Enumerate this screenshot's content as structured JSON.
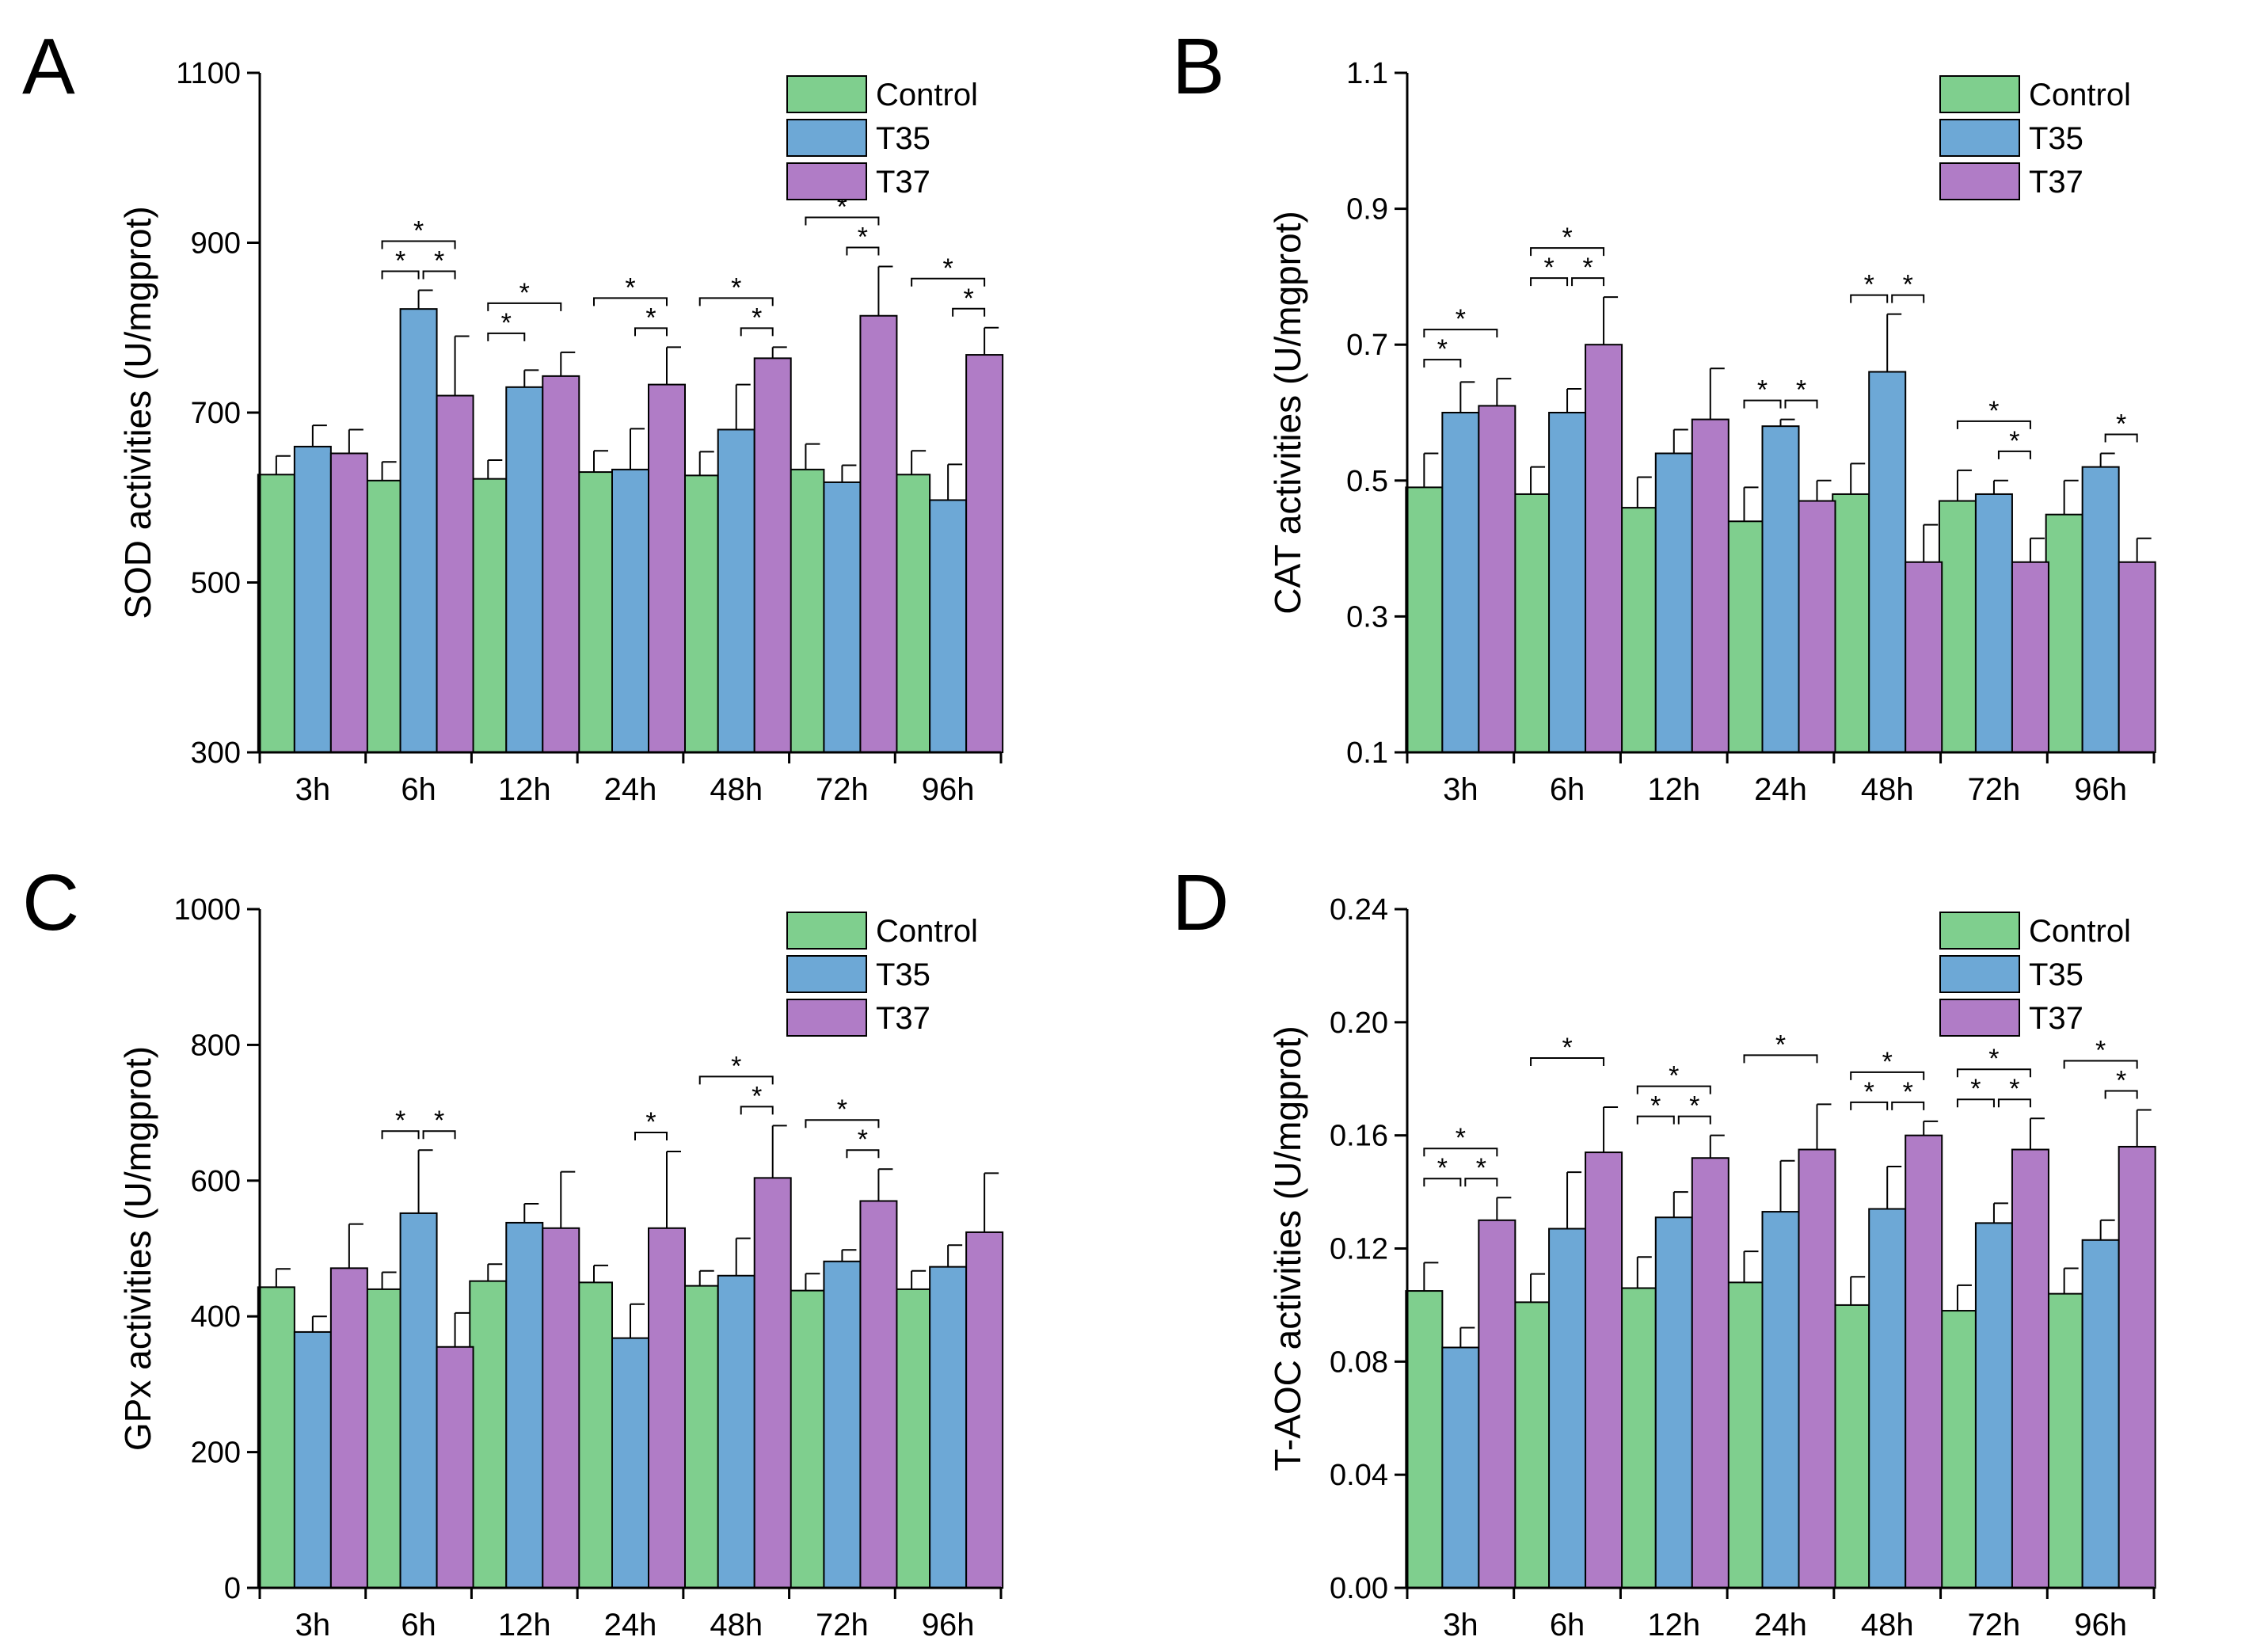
{
  "legend": {
    "items": [
      {
        "name": "Control",
        "color": "#7fcf8e"
      },
      {
        "name": "T35",
        "color": "#6da8d6"
      },
      {
        "name": "T37",
        "color": "#b07cc6"
      }
    ]
  },
  "chart_data": [
    {
      "panel": "A",
      "type": "bar",
      "title": "",
      "xlabel": "",
      "ylabel": "SOD activities (U/mgprot)",
      "ylim": [
        300,
        1100
      ],
      "yticks": [
        "300",
        "500",
        "700",
        "900",
        "1100"
      ],
      "categories": [
        "3h",
        "6h",
        "12h",
        "24h",
        "48h",
        "72h",
        "96h"
      ],
      "series": [
        {
          "name": "Control",
          "values": [
            627,
            620,
            622,
            630,
            626,
            633,
            627
          ],
          "errors": [
            22,
            22,
            22,
            25,
            28,
            30,
            28
          ]
        },
        {
          "name": "T35",
          "values": [
            660,
            822,
            730,
            633,
            680,
            618,
            597
          ],
          "errors": [
            25,
            22,
            20,
            48,
            53,
            20,
            42
          ]
        },
        {
          "name": "T37",
          "values": [
            652,
            720,
            743,
            733,
            764,
            814,
            768
          ],
          "errors": [
            28,
            70,
            28,
            44,
            13,
            58,
            32
          ]
        }
      ],
      "significance": [
        {
          "category": "6h",
          "pairs": [
            [
              "Control",
              "T35"
            ],
            [
              "T35",
              "T37"
            ],
            [
              "Control",
              "T37"
            ]
          ],
          "label": "*"
        },
        {
          "category": "12h",
          "pairs": [
            [
              "Control",
              "T35"
            ],
            [
              "Control",
              "T37"
            ]
          ],
          "label": "*"
        },
        {
          "category": "24h",
          "pairs": [
            [
              "T35",
              "T37"
            ],
            [
              "Control",
              "T37"
            ]
          ],
          "label": "*"
        },
        {
          "category": "48h",
          "pairs": [
            [
              "T35",
              "T37"
            ],
            [
              "Control",
              "T37"
            ]
          ],
          "label": "*"
        },
        {
          "category": "72h",
          "pairs": [
            [
              "T35",
              "T37"
            ],
            [
              "Control",
              "T37"
            ]
          ],
          "label": "*"
        },
        {
          "category": "96h",
          "pairs": [
            [
              "T35",
              "T37"
            ],
            [
              "Control",
              "T37"
            ]
          ],
          "label": "*"
        }
      ]
    },
    {
      "panel": "B",
      "type": "bar",
      "title": "",
      "xlabel": "",
      "ylabel": "CAT activities (U/mgprot)",
      "ylim": [
        0.1,
        1.1
      ],
      "yticks": [
        "0.1",
        "0.3",
        "0.5",
        "0.7",
        "0.9",
        "1.1"
      ],
      "categories": [
        "3h",
        "6h",
        "12h",
        "24h",
        "48h",
        "72h",
        "96h"
      ],
      "series": [
        {
          "name": "Control",
          "values": [
            0.49,
            0.48,
            0.46,
            0.44,
            0.48,
            0.47,
            0.45
          ],
          "errors": [
            0.05,
            0.04,
            0.045,
            0.05,
            0.045,
            0.045,
            0.05
          ]
        },
        {
          "name": "T35",
          "values": [
            0.6,
            0.6,
            0.54,
            0.58,
            0.66,
            0.48,
            0.52
          ],
          "errors": [
            0.045,
            0.035,
            0.035,
            0.01,
            0.085,
            0.02,
            0.02
          ]
        },
        {
          "name": "T37",
          "values": [
            0.61,
            0.7,
            0.59,
            0.47,
            0.38,
            0.38,
            0.38
          ],
          "errors": [
            0.04,
            0.07,
            0.075,
            0.03,
            0.055,
            0.035,
            0.035
          ]
        }
      ],
      "significance": [
        {
          "category": "3h",
          "pairs": [
            [
              "Control",
              "T35"
            ],
            [
              "Control",
              "T37"
            ]
          ],
          "label": "*"
        },
        {
          "category": "6h",
          "pairs": [
            [
              "Control",
              "T35"
            ],
            [
              "T35",
              "T37"
            ],
            [
              "Control",
              "T37"
            ]
          ],
          "label": "*"
        },
        {
          "category": "24h",
          "pairs": [
            [
              "Control",
              "T35"
            ],
            [
              "T35",
              "T37"
            ]
          ],
          "label": "*"
        },
        {
          "category": "48h",
          "pairs": [
            [
              "Control",
              "T35"
            ],
            [
              "T35",
              "T37"
            ]
          ],
          "label": "*"
        },
        {
          "category": "72h",
          "pairs": [
            [
              "T35",
              "T37"
            ],
            [
              "Control",
              "T37"
            ]
          ],
          "label": "*"
        },
        {
          "category": "96h",
          "pairs": [
            [
              "T35",
              "T37"
            ]
          ],
          "label": "*"
        }
      ]
    },
    {
      "panel": "C",
      "type": "bar",
      "title": "",
      "xlabel": "",
      "ylabel": "GPx activities (U/mgprot)",
      "ylim": [
        0,
        1000
      ],
      "yticks": [
        "0",
        "200",
        "400",
        "600",
        "800",
        "1000"
      ],
      "categories": [
        "3h",
        "6h",
        "12h",
        "24h",
        "48h",
        "72h",
        "96h"
      ],
      "series": [
        {
          "name": "Control",
          "values": [
            443,
            440,
            452,
            450,
            445,
            438,
            440
          ],
          "errors": [
            27,
            25,
            25,
            25,
            22,
            25,
            27
          ]
        },
        {
          "name": "T35",
          "values": [
            377,
            552,
            538,
            368,
            460,
            481,
            473
          ],
          "errors": [
            23,
            93,
            28,
            50,
            55,
            17,
            32
          ]
        },
        {
          "name": "T37",
          "values": [
            471,
            355,
            530,
            530,
            604,
            570,
            524
          ],
          "errors": [
            65,
            50,
            83,
            113,
            77,
            47,
            87
          ]
        }
      ],
      "significance": [
        {
          "category": "6h",
          "pairs": [
            [
              "Control",
              "T35"
            ],
            [
              "T35",
              "T37"
            ]
          ],
          "label": "*"
        },
        {
          "category": "24h",
          "pairs": [
            [
              "T35",
              "T37"
            ]
          ],
          "label": "*"
        },
        {
          "category": "48h",
          "pairs": [
            [
              "T35",
              "T37"
            ],
            [
              "Control",
              "T37"
            ]
          ],
          "label": "*"
        },
        {
          "category": "72h",
          "pairs": [
            [
              "T35",
              "T37"
            ],
            [
              "Control",
              "T37"
            ]
          ],
          "label": "*"
        }
      ]
    },
    {
      "panel": "D",
      "type": "bar",
      "title": "",
      "xlabel": "",
      "ylabel": "T-AOC activities (U/mgprot)",
      "ylim": [
        0.0,
        0.24
      ],
      "yticks": [
        "0.00",
        "0.04",
        "0.08",
        "0.12",
        "0.16",
        "0.20",
        "0.24"
      ],
      "categories": [
        "3h",
        "6h",
        "12h",
        "24h",
        "48h",
        "72h",
        "96h"
      ],
      "series": [
        {
          "name": "Control",
          "values": [
            0.105,
            0.101,
            0.106,
            0.108,
            0.1,
            0.098,
            0.104
          ],
          "errors": [
            0.01,
            0.01,
            0.011,
            0.011,
            0.01,
            0.009,
            0.009
          ]
        },
        {
          "name": "T35",
          "values": [
            0.085,
            0.127,
            0.131,
            0.133,
            0.134,
            0.129,
            0.123
          ],
          "errors": [
            0.007,
            0.02,
            0.009,
            0.018,
            0.015,
            0.007,
            0.007
          ]
        },
        {
          "name": "T37",
          "values": [
            0.13,
            0.154,
            0.152,
            0.155,
            0.16,
            0.155,
            0.156
          ],
          "errors": [
            0.008,
            0.016,
            0.008,
            0.016,
            0.005,
            0.011,
            0.013
          ]
        }
      ],
      "significance": [
        {
          "category": "3h",
          "pairs": [
            [
              "Control",
              "T35"
            ],
            [
              "T35",
              "T37"
            ],
            [
              "Control",
              "T37"
            ]
          ],
          "label": "*"
        },
        {
          "category": "6h",
          "pairs": [
            [
              "Control",
              "T37"
            ]
          ],
          "label": "*"
        },
        {
          "category": "12h",
          "pairs": [
            [
              "Control",
              "T35"
            ],
            [
              "T35",
              "T37"
            ],
            [
              "Control",
              "T37"
            ]
          ],
          "label": "*"
        },
        {
          "category": "24h",
          "pairs": [
            [
              "Control",
              "T37"
            ]
          ],
          "label": "*"
        },
        {
          "category": "48h",
          "pairs": [
            [
              "Control",
              "T35"
            ],
            [
              "T35",
              "T37"
            ],
            [
              "Control",
              "T37"
            ]
          ],
          "label": "*"
        },
        {
          "category": "72h",
          "pairs": [
            [
              "Control",
              "T35"
            ],
            [
              "T35",
              "T37"
            ],
            [
              "Control",
              "T37"
            ]
          ],
          "label": "*"
        },
        {
          "category": "96h",
          "pairs": [
            [
              "T35",
              "T37"
            ],
            [
              "Control",
              "T37"
            ]
          ],
          "label": "*"
        }
      ]
    }
  ]
}
